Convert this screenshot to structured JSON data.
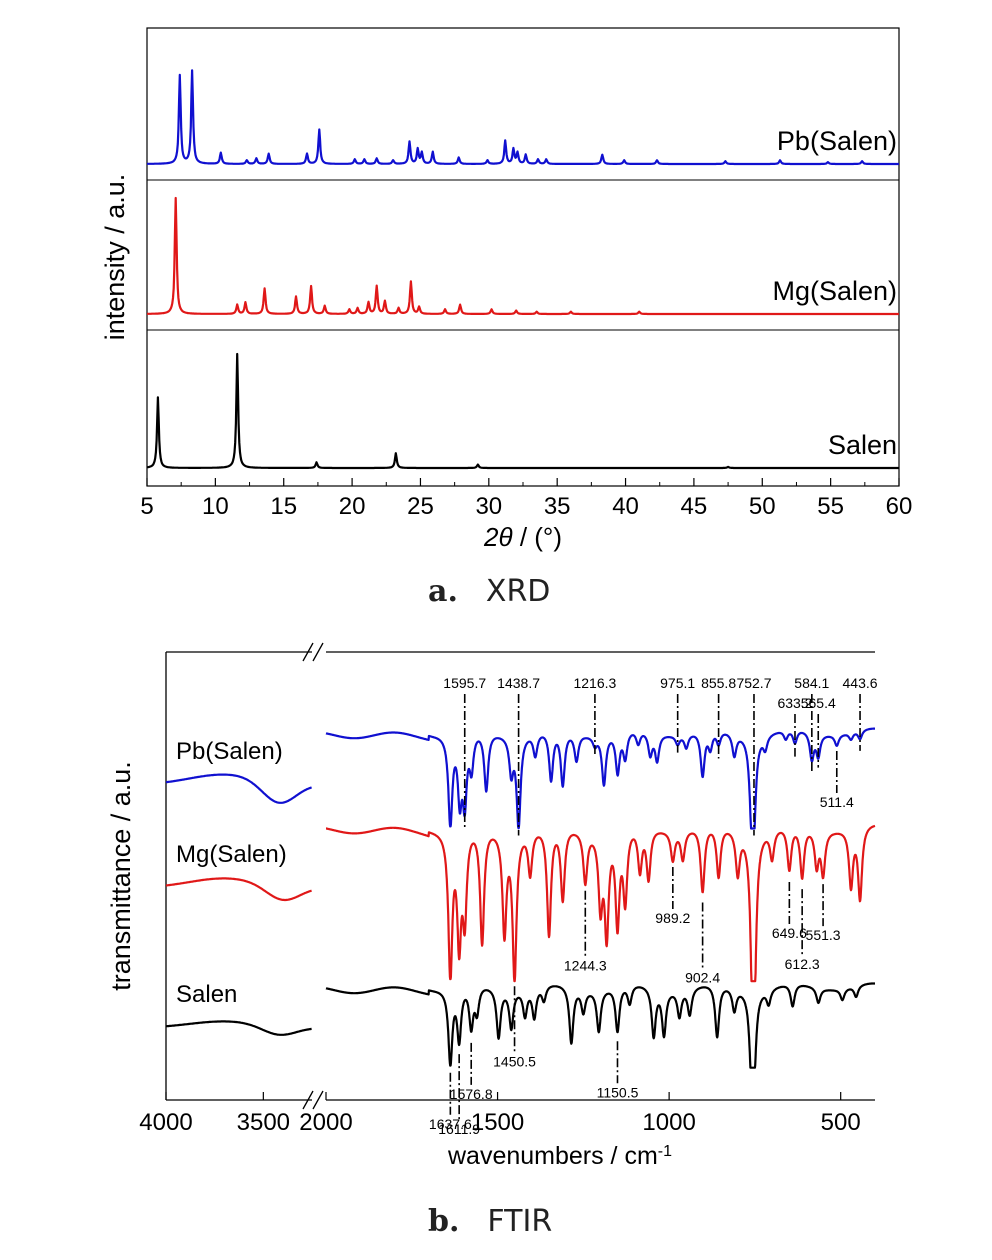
{
  "chart_data": [
    {
      "type": "line",
      "panel_label": "a.",
      "panel_title": "XRD",
      "xlabel_var": "2θ",
      "xlabel_unit": " / (°)",
      "ylabel": "intensity / a.u.",
      "xlim": [
        5,
        60
      ],
      "xticks": [
        "5",
        "10",
        "15",
        "20",
        "25",
        "30",
        "35",
        "40",
        "45",
        "50",
        "55",
        "60"
      ],
      "series": [
        {
          "name": "Pb(Salen)",
          "color": "#1010d0",
          "peaks": [
            [
              7.4,
              0.95
            ],
            [
              8.3,
              1.0
            ],
            [
              10.4,
              0.12
            ],
            [
              12.3,
              0.04
            ],
            [
              13.0,
              0.06
            ],
            [
              13.9,
              0.11
            ],
            [
              16.7,
              0.11
            ],
            [
              17.6,
              0.37
            ],
            [
              20.2,
              0.05
            ],
            [
              20.9,
              0.05
            ],
            [
              21.8,
              0.06
            ],
            [
              23.0,
              0.04
            ],
            [
              24.2,
              0.24
            ],
            [
              24.8,
              0.16
            ],
            [
              25.1,
              0.12
            ],
            [
              25.9,
              0.13
            ],
            [
              27.8,
              0.07
            ],
            [
              29.9,
              0.04
            ],
            [
              31.2,
              0.25
            ],
            [
              31.8,
              0.16
            ],
            [
              32.1,
              0.12
            ],
            [
              32.7,
              0.1
            ],
            [
              33.6,
              0.05
            ],
            [
              34.2,
              0.05
            ],
            [
              38.3,
              0.1
            ],
            [
              39.9,
              0.04
            ],
            [
              42.3,
              0.04
            ],
            [
              47.3,
              0.03
            ],
            [
              51.3,
              0.04
            ],
            [
              54.8,
              0.02
            ],
            [
              57.3,
              0.03
            ]
          ]
        },
        {
          "name": "Mg(Salen)",
          "color": "#e01818",
          "peaks": [
            [
              7.1,
              1.0
            ],
            [
              11.6,
              0.08
            ],
            [
              12.2,
              0.1
            ],
            [
              13.6,
              0.22
            ],
            [
              15.9,
              0.15
            ],
            [
              17.0,
              0.24
            ],
            [
              18.0,
              0.07
            ],
            [
              19.8,
              0.04
            ],
            [
              20.4,
              0.05
            ],
            [
              21.2,
              0.1
            ],
            [
              21.8,
              0.24
            ],
            [
              22.4,
              0.11
            ],
            [
              23.4,
              0.05
            ],
            [
              24.3,
              0.28
            ],
            [
              24.9,
              0.06
            ],
            [
              26.8,
              0.04
            ],
            [
              27.9,
              0.08
            ],
            [
              30.2,
              0.04
            ],
            [
              32.0,
              0.03
            ],
            [
              33.5,
              0.02
            ],
            [
              36.0,
              0.02
            ],
            [
              41.0,
              0.02
            ]
          ]
        },
        {
          "name": "Salen",
          "color": "#000000",
          "peaks": [
            [
              5.8,
              0.62
            ],
            [
              11.6,
              1.0
            ],
            [
              17.4,
              0.05
            ],
            [
              23.2,
              0.13
            ],
            [
              29.2,
              0.03
            ],
            [
              47.5,
              0.01
            ]
          ]
        }
      ]
    },
    {
      "type": "line",
      "panel_label": "b.",
      "panel_title": "FTIR",
      "xlabel": "wavenumbers / cm",
      "xlabel_sup": "-1",
      "ylabel": "transmittance / a.u.",
      "x_segments": [
        [
          4000,
          3250
        ],
        [
          2000,
          400
        ]
      ],
      "xticks_left": [
        "4000",
        "3500"
      ],
      "xticks_right": [
        "2000",
        "1500",
        "1000",
        "500"
      ],
      "series": [
        {
          "name": "Pb(Salen)",
          "color": "#1010d0",
          "highfreq_band": [
            3420,
            0.6
          ],
          "bands": [
            [
              1637.6,
              1.0
            ],
            [
              1610,
              0.7
            ],
            [
              1595.7,
              0.75
            ],
            [
              1576,
              0.4
            ],
            [
              1533,
              0.65
            ],
            [
              1460,
              0.4
            ],
            [
              1438.7,
              1.0
            ],
            [
              1390,
              0.25
            ],
            [
              1344,
              0.55
            ],
            [
              1310,
              0.6
            ],
            [
              1270,
              0.3
            ],
            [
              1216.3,
              0.1
            ],
            [
              1190,
              0.55
            ],
            [
              1150,
              0.45
            ],
            [
              1128,
              0.3
            ],
            [
              1090,
              0.15
            ],
            [
              1055,
              0.25
            ],
            [
              1035,
              0.3
            ],
            [
              975.1,
              0.1
            ],
            [
              950,
              0.15
            ],
            [
              902.4,
              0.5
            ],
            [
              880,
              0.2
            ],
            [
              855.8,
              0.15
            ],
            [
              810,
              0.25
            ],
            [
              760,
              0.75
            ],
            [
              752.7,
              0.8
            ],
            [
              720,
              0.15
            ],
            [
              660,
              0.1
            ],
            [
              633.2,
              0.15
            ],
            [
              584.1,
              0.3
            ],
            [
              565.4,
              0.25
            ],
            [
              511.4,
              0.12
            ],
            [
              470,
              0.08
            ],
            [
              443.6,
              0.1
            ]
          ],
          "labels": [
            [
              1595.7,
              "top"
            ],
            [
              1438.7,
              "top"
            ],
            [
              1216.3,
              "top"
            ],
            [
              975.1,
              "top"
            ],
            [
              855.8,
              "top"
            ],
            [
              752.7,
              "top"
            ],
            [
              633.2,
              "top2"
            ],
            [
              584.1,
              "top"
            ],
            [
              565.4,
              "top2"
            ],
            [
              443.6,
              "top"
            ],
            [
              511.4,
              "below"
            ]
          ]
        },
        {
          "name": "Mg(Salen)",
          "color": "#e01818",
          "highfreq_band": [
            3400,
            0.45
          ],
          "bands": [
            [
              1637.6,
              1.0
            ],
            [
              1611.9,
              0.75
            ],
            [
              1595.7,
              0.6
            ],
            [
              1545,
              0.8
            ],
            [
              1480,
              0.7
            ],
            [
              1450.5,
              1.0
            ],
            [
              1405,
              0.3
            ],
            [
              1350,
              0.75
            ],
            [
              1310,
              0.5
            ],
            [
              1244.3,
              0.35
            ],
            [
              1200,
              0.5
            ],
            [
              1182,
              0.7
            ],
            [
              1150.5,
              0.65
            ],
            [
              1128,
              0.5
            ],
            [
              1085,
              0.3
            ],
            [
              1060,
              0.35
            ],
            [
              989.2,
              0.2
            ],
            [
              960,
              0.2
            ],
            [
              902.4,
              0.45
            ],
            [
              855.8,
              0.35
            ],
            [
              800,
              0.3
            ],
            [
              756,
              0.9
            ],
            [
              752.7,
              0.85
            ],
            [
              700,
              0.2
            ],
            [
              649.6,
              0.3
            ],
            [
              612.3,
              0.35
            ],
            [
              570,
              0.25
            ],
            [
              551.3,
              0.3
            ],
            [
              470,
              0.4
            ],
            [
              443.6,
              0.5
            ]
          ],
          "labels": [
            [
              989.2,
              "below"
            ],
            [
              1244.3,
              "below2"
            ],
            [
              902.4,
              "below2"
            ],
            [
              1450.5,
              "below2"
            ],
            [
              649.6,
              "below"
            ],
            [
              612.3,
              "below2"
            ],
            [
              551.3,
              "below"
            ]
          ]
        },
        {
          "name": "Salen",
          "color": "#000000",
          "highfreq_band": [
            3420,
            0.4
          ],
          "bands": [
            [
              1637.6,
              1.0
            ],
            [
              1611.9,
              0.7
            ],
            [
              1576.8,
              0.55
            ],
            [
              1560,
              0.35
            ],
            [
              1497,
              0.65
            ],
            [
              1460,
              0.5
            ],
            [
              1420,
              0.35
            ],
            [
              1393,
              0.4
            ],
            [
              1365,
              0.2
            ],
            [
              1285,
              0.75
            ],
            [
              1250,
              0.3
            ],
            [
              1205,
              0.55
            ],
            [
              1150.5,
              0.6
            ],
            [
              1115,
              0.25
            ],
            [
              1045,
              0.65
            ],
            [
              1015,
              0.6
            ],
            [
              970,
              0.35
            ],
            [
              940,
              0.35
            ],
            [
              860,
              0.7
            ],
            [
              810,
              0.3
            ],
            [
              760,
              0.9
            ],
            [
              752.7,
              0.95
            ],
            [
              710,
              0.2
            ],
            [
              640,
              0.3
            ],
            [
              565,
              0.2
            ],
            [
              495,
              0.15
            ],
            [
              455,
              0.15
            ]
          ],
          "labels": [
            [
              1637.6,
              "below"
            ],
            [
              1611.9,
              "below2"
            ],
            [
              1576.8,
              "below"
            ],
            [
              1150.5,
              "below"
            ]
          ]
        }
      ]
    }
  ]
}
